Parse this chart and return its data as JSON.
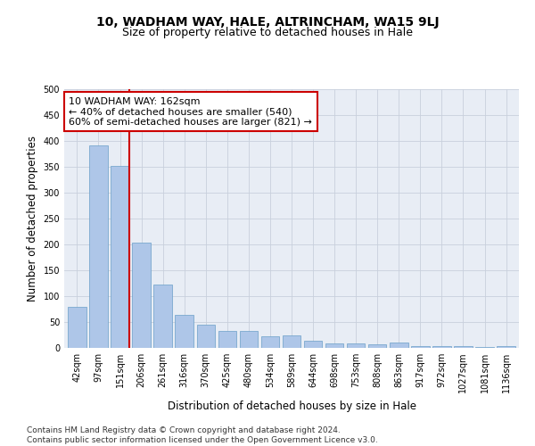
{
  "title": "10, WADHAM WAY, HALE, ALTRINCHAM, WA15 9LJ",
  "subtitle": "Size of property relative to detached houses in Hale",
  "xlabel": "Distribution of detached houses by size in Hale",
  "ylabel": "Number of detached properties",
  "categories": [
    "42sqm",
    "97sqm",
    "151sqm",
    "206sqm",
    "261sqm",
    "316sqm",
    "370sqm",
    "425sqm",
    "480sqm",
    "534sqm",
    "589sqm",
    "644sqm",
    "698sqm",
    "753sqm",
    "808sqm",
    "863sqm",
    "917sqm",
    "972sqm",
    "1027sqm",
    "1081sqm",
    "1136sqm"
  ],
  "values": [
    80,
    392,
    352,
    204,
    122,
    64,
    44,
    32,
    32,
    22,
    24,
    13,
    9,
    9,
    7,
    10,
    4,
    3,
    3,
    2,
    4
  ],
  "bar_color": "#aec6e8",
  "bar_edge_color": "#6a9fc8",
  "vline_color": "#cc0000",
  "annotation_text": "10 WADHAM WAY: 162sqm\n← 40% of detached houses are smaller (540)\n60% of semi-detached houses are larger (821) →",
  "annotation_box_color": "#ffffff",
  "annotation_box_edge": "#cc0000",
  "ylim": [
    0,
    500
  ],
  "yticks": [
    0,
    50,
    100,
    150,
    200,
    250,
    300,
    350,
    400,
    450,
    500
  ],
  "grid_color": "#c8d0dc",
  "background_color": "#e8edf5",
  "footer": "Contains HM Land Registry data © Crown copyright and database right 2024.\nContains public sector information licensed under the Open Government Licence v3.0.",
  "title_fontsize": 10,
  "subtitle_fontsize": 9,
  "xlabel_fontsize": 8.5,
  "ylabel_fontsize": 8.5,
  "tick_fontsize": 7,
  "annotation_fontsize": 8,
  "footer_fontsize": 6.5
}
